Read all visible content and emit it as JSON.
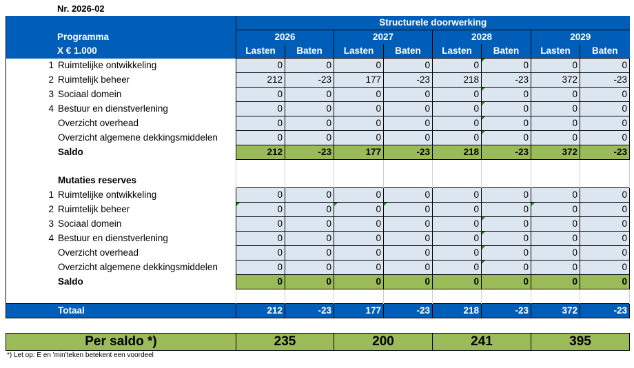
{
  "doc_number": "Nr.  2026-02",
  "header": {
    "group_title": "Structurele doorwerking",
    "label_line1": "Programma",
    "label_line2": "X € 1.000",
    "years": [
      "2026",
      "2027",
      "2028",
      "2029"
    ],
    "sub_headers": [
      "Lasten",
      "Baten"
    ]
  },
  "section1": {
    "rows": [
      {
        "num": "1",
        "label": "Ruimtelijke ontwikkeling",
        "values": [
          "0",
          "0",
          "0",
          "0",
          "0",
          "0",
          "0",
          "0"
        ]
      },
      {
        "num": "2",
        "label": "Ruimtelijk beheer",
        "values": [
          "212",
          "-23",
          "177",
          "-23",
          "218",
          "-23",
          "372",
          "-23"
        ]
      },
      {
        "num": "3",
        "label": "Sociaal domein",
        "values": [
          "0",
          "0",
          "0",
          "0",
          "0",
          "0",
          "0",
          "0"
        ]
      },
      {
        "num": "4",
        "label": "Bestuur en dienstverlening",
        "values": [
          "0",
          "0",
          "0",
          "0",
          "0",
          "0",
          "0",
          "0"
        ]
      },
      {
        "num": "",
        "label": "Overzicht overhead",
        "values": [
          "0",
          "0",
          "0",
          "0",
          "0",
          "0",
          "0",
          "0"
        ]
      },
      {
        "num": "",
        "label": "Overzicht algemene dekkingsmiddelen",
        "values": [
          "0",
          "0",
          "0",
          "0",
          "0",
          "0",
          "0",
          "0"
        ]
      }
    ],
    "saldo": {
      "label": "Saldo",
      "values": [
        "212",
        "-23",
        "177",
        "-23",
        "218",
        "-23",
        "372",
        "-23"
      ]
    }
  },
  "section2": {
    "title": "Mutaties reserves",
    "rows": [
      {
        "num": "1",
        "label": "Ruimtelijke ontwikkeling",
        "values": [
          "0",
          "0",
          "0",
          "0",
          "0",
          "0",
          "0",
          "0"
        ]
      },
      {
        "num": "2",
        "label": "Ruimtelijk beheer",
        "values": [
          "0",
          "0",
          "0",
          "0",
          "0",
          "0",
          "0",
          "0"
        ]
      },
      {
        "num": "3",
        "label": "Sociaal domein",
        "values": [
          "0",
          "0",
          "0",
          "0",
          "0",
          "0",
          "0",
          "0"
        ]
      },
      {
        "num": "4",
        "label": "Bestuur en dienstverlening",
        "values": [
          "0",
          "0",
          "0",
          "0",
          "0",
          "0",
          "0",
          "0"
        ]
      },
      {
        "num": "",
        "label": "Overzicht overhead",
        "values": [
          "0",
          "0",
          "0",
          "0",
          "0",
          "0",
          "0",
          "0"
        ]
      },
      {
        "num": "",
        "label": "Overzicht algemene dekkingsmiddelen",
        "values": [
          "0",
          "0",
          "0",
          "0",
          "0",
          "0",
          "0",
          "0"
        ]
      }
    ],
    "saldo": {
      "label": "Saldo",
      "values": [
        "0",
        "0",
        "0",
        "0",
        "0",
        "0",
        "0",
        "0"
      ]
    }
  },
  "totaal": {
    "label": "Totaal",
    "values": [
      "212",
      "-23",
      "177",
      "-23",
      "218",
      "-23",
      "372",
      "-23"
    ]
  },
  "per_saldo": {
    "label": "Per saldo *)",
    "values": [
      "235",
      "200",
      "241",
      "395"
    ]
  },
  "footnote": "*) Let op: E en 'min'teken betekent een voordeel",
  "colors": {
    "header_blue": "#005EB8",
    "saldo_green": "#9BBB59",
    "cell_bg": "#DCE6F1"
  }
}
